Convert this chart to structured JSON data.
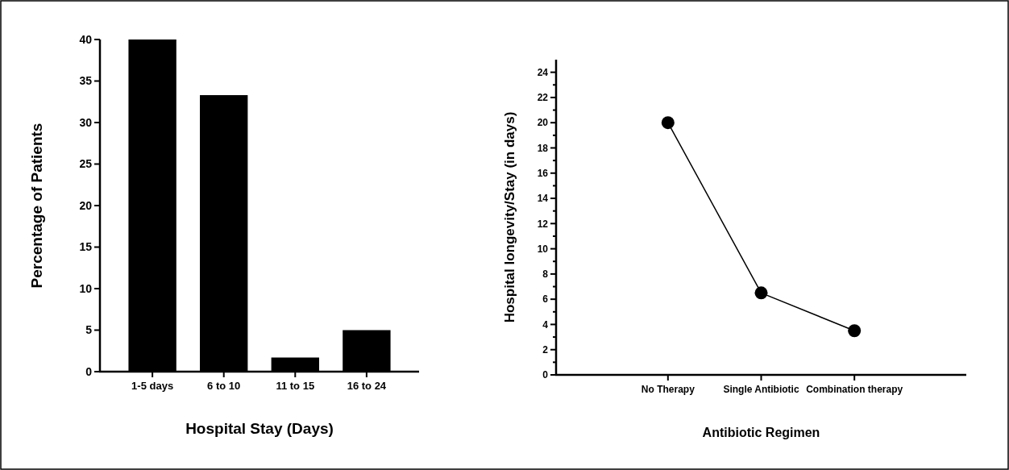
{
  "chart_data": [
    {
      "type": "bar",
      "xlabel": "Hospital Stay (Days)",
      "ylabel": "Percentage of Patients",
      "categories": [
        "1-5 days",
        "6 to 10",
        "11 to 15",
        "16 to 24"
      ],
      "series": [
        {
          "color": "#000000",
          "values": [
            40,
            33.3,
            1.7,
            5
          ]
        }
      ],
      "ylim": [
        0,
        40
      ],
      "yticks": [
        0,
        5,
        10,
        15,
        20,
        25,
        30,
        35,
        40
      ],
      "grid": false
    },
    {
      "type": "line",
      "xlabel": "Antibiotic Regimen",
      "ylabel": "Hospital longevity/Stay (in days)",
      "categories": [
        "No Therapy",
        "Single Antibiotic",
        "Combination therapy"
      ],
      "series": [
        {
          "color": "#000000",
          "values": [
            20,
            6.5,
            3.5
          ]
        }
      ],
      "ylim": [
        0,
        25
      ],
      "yticks": [
        0,
        {
          "value": 1,
          "label": null
        },
        2,
        {
          "value": 3,
          "label": null
        },
        4,
        {
          "value": 5,
          "label": null
        },
        6,
        {
          "value": 7,
          "label": null
        },
        8,
        {
          "value": 9,
          "label": null
        },
        10,
        {
          "value": 11,
          "label": null
        },
        12,
        {
          "value": 13,
          "label": null
        },
        14,
        {
          "value": 15,
          "label": null
        },
        16,
        {
          "value": 17,
          "label": null
        },
        18,
        {
          "value": 19,
          "label": null
        },
        20,
        {
          "value": 21,
          "label": null
        },
        22,
        {
          "value": 23,
          "label": null
        },
        24
      ],
      "marker": "circle",
      "line_style": "solid",
      "grid": false
    }
  ]
}
